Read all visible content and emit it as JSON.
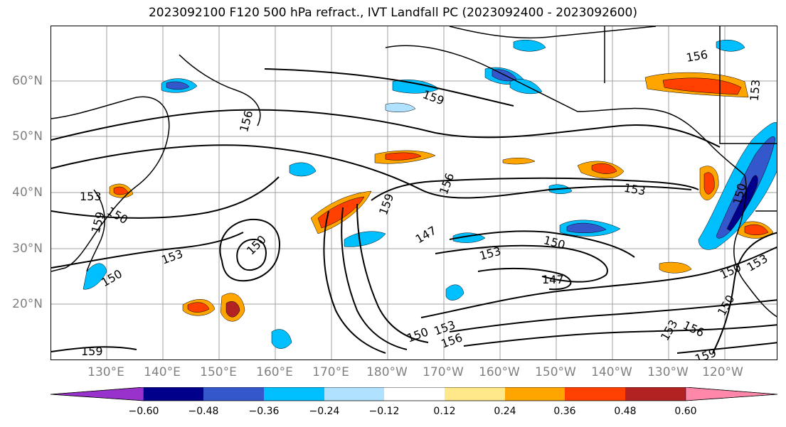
{
  "title": "2023092100 F120 500 hPa refract., IVT Landfall PC (2023092400 - 2023092600)",
  "lat_labels": [
    "60°N",
    "50°N",
    "40°N",
    "30°N",
    "20°N"
  ],
  "lon_labels": [
    "130°E",
    "140°E",
    "150°E",
    "160°E",
    "170°E",
    "180°W",
    "170°W",
    "160°W",
    "150°W",
    "140°W",
    "130°W",
    "120°W"
  ],
  "contour_labels": [
    "156",
    "159",
    "153",
    "150",
    "147",
    "150",
    "153",
    "156",
    "159",
    "153",
    "150",
    "147",
    "150",
    "153",
    "150",
    "153",
    "156",
    "159",
    "156",
    "153",
    "150",
    "150",
    "159",
    "159",
    "153",
    "156",
    "150",
    "153"
  ],
  "colorbar": {
    "ticks": [
      "−0.60",
      "−0.48",
      "−0.36",
      "−0.24",
      "−0.12",
      "0.12",
      "0.24",
      "0.36",
      "0.48",
      "0.60"
    ],
    "colors": [
      "#9932cc",
      "#00008b",
      "#3557cc",
      "#00bfff",
      "#b0e2ff",
      "#ffffff",
      "#ffe88a",
      "#ffa500",
      "#ff4000",
      "#b22222",
      "#ff88aa"
    ]
  }
}
